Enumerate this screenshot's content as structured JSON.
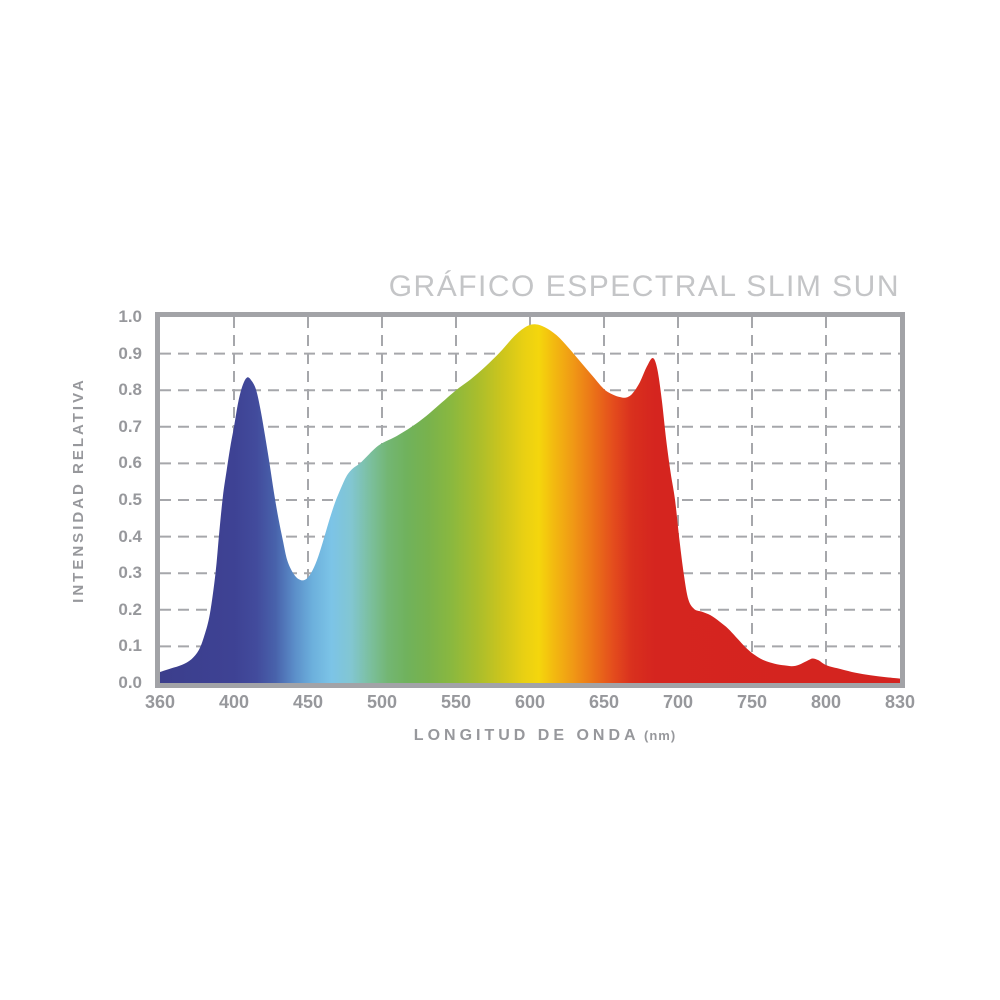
{
  "chart_data": {
    "type": "area",
    "title": "GRÁFICO ESPECTRAL SLIM SUN",
    "xlabel": "LONGITUD DE ONDA",
    "xlabel_unit": "(nm)",
    "ylabel": "INTENSIDAD RELATIVA",
    "x_ticks": [
      360,
      400,
      450,
      500,
      550,
      600,
      650,
      700,
      750,
      800,
      830
    ],
    "x_tick_spacing": "uniform",
    "y_ticks": [
      "0.0",
      "0.1",
      "0.2",
      "0.3",
      "0.4",
      "0.5",
      "0.6",
      "0.7",
      "0.8",
      "0.9",
      "1.0"
    ],
    "ylim": [
      0,
      1
    ],
    "grid": true,
    "grid_style": "dashed",
    "legend": "none",
    "series": [
      {
        "name": "intensidad-espectral",
        "points": [
          [
            360,
            0.03
          ],
          [
            366,
            0.04
          ],
          [
            372,
            0.05
          ],
          [
            377,
            0.065
          ],
          [
            381,
            0.09
          ],
          [
            384,
            0.13
          ],
          [
            387,
            0.19
          ],
          [
            390,
            0.3
          ],
          [
            392,
            0.41
          ],
          [
            394,
            0.51
          ],
          [
            396,
            0.58
          ],
          [
            398,
            0.645
          ],
          [
            400,
            0.7
          ],
          [
            403,
            0.77
          ],
          [
            406,
            0.815
          ],
          [
            409,
            0.835
          ],
          [
            412,
            0.825
          ],
          [
            415,
            0.8
          ],
          [
            418,
            0.745
          ],
          [
            421,
            0.675
          ],
          [
            424,
            0.6
          ],
          [
            427,
            0.52
          ],
          [
            430,
            0.45
          ],
          [
            433,
            0.39
          ],
          [
            436,
            0.335
          ],
          [
            440,
            0.3
          ],
          [
            444,
            0.283
          ],
          [
            448,
            0.282
          ],
          [
            452,
            0.3
          ],
          [
            456,
            0.335
          ],
          [
            460,
            0.385
          ],
          [
            464,
            0.44
          ],
          [
            468,
            0.49
          ],
          [
            472,
            0.53
          ],
          [
            476,
            0.565
          ],
          [
            480,
            0.585
          ],
          [
            485,
            0.6
          ],
          [
            490,
            0.62
          ],
          [
            495,
            0.64
          ],
          [
            500,
            0.655
          ],
          [
            510,
            0.675
          ],
          [
            520,
            0.7
          ],
          [
            530,
            0.73
          ],
          [
            540,
            0.765
          ],
          [
            550,
            0.8
          ],
          [
            560,
            0.83
          ],
          [
            570,
            0.865
          ],
          [
            580,
            0.905
          ],
          [
            590,
            0.95
          ],
          [
            598,
            0.975
          ],
          [
            604,
            0.98
          ],
          [
            610,
            0.972
          ],
          [
            618,
            0.95
          ],
          [
            626,
            0.916
          ],
          [
            634,
            0.878
          ],
          [
            642,
            0.84
          ],
          [
            650,
            0.803
          ],
          [
            656,
            0.788
          ],
          [
            661,
            0.781
          ],
          [
            665,
            0.78
          ],
          [
            669,
            0.79
          ],
          [
            674,
            0.82
          ],
          [
            679,
            0.865
          ],
          [
            683,
            0.888
          ],
          [
            686,
            0.858
          ],
          [
            689,
            0.775
          ],
          [
            692,
            0.665
          ],
          [
            695,
            0.575
          ],
          [
            698,
            0.5
          ],
          [
            701,
            0.39
          ],
          [
            704,
            0.295
          ],
          [
            707,
            0.228
          ],
          [
            711,
            0.202
          ],
          [
            716,
            0.195
          ],
          [
            722,
            0.185
          ],
          [
            728,
            0.168
          ],
          [
            734,
            0.148
          ],
          [
            740,
            0.122
          ],
          [
            746,
            0.096
          ],
          [
            752,
            0.076
          ],
          [
            758,
            0.062
          ],
          [
            765,
            0.053
          ],
          [
            772,
            0.048
          ],
          [
            778,
            0.046
          ],
          [
            783,
            0.052
          ],
          [
            788,
            0.062
          ],
          [
            791,
            0.067
          ],
          [
            795,
            0.062
          ],
          [
            800,
            0.049
          ],
          [
            806,
            0.038
          ],
          [
            812,
            0.028
          ],
          [
            818,
            0.021
          ],
          [
            824,
            0.016
          ],
          [
            830,
            0.012
          ]
        ]
      }
    ],
    "gradient_stops": [
      {
        "nm": 360,
        "color": "#3b3e8c"
      },
      {
        "nm": 400,
        "color": "#3e4294"
      },
      {
        "nm": 415,
        "color": "#424b9c"
      },
      {
        "nm": 428,
        "color": "#4862ab"
      },
      {
        "nm": 441,
        "color": "#5b8ec9"
      },
      {
        "nm": 453,
        "color": "#6cb0dc"
      },
      {
        "nm": 466,
        "color": "#7cc4e7"
      },
      {
        "nm": 479,
        "color": "#82c6d2"
      },
      {
        "nm": 491,
        "color": "#7cc0a2"
      },
      {
        "nm": 504,
        "color": "#73b673"
      },
      {
        "nm": 517,
        "color": "#70b25c"
      },
      {
        "nm": 531,
        "color": "#78b24d"
      },
      {
        "nm": 547,
        "color": "#8ab83f"
      },
      {
        "nm": 564,
        "color": "#a8bd2d"
      },
      {
        "nm": 581,
        "color": "#ccc51d"
      },
      {
        "nm": 596,
        "color": "#e9d013"
      },
      {
        "nm": 606,
        "color": "#f4d60d"
      },
      {
        "nm": 616,
        "color": "#f3ba10"
      },
      {
        "nm": 629,
        "color": "#f09915"
      },
      {
        "nm": 643,
        "color": "#eb7218"
      },
      {
        "nm": 656,
        "color": "#e44d1d"
      },
      {
        "nm": 669,
        "color": "#d9301e"
      },
      {
        "nm": 684,
        "color": "#d5251f"
      },
      {
        "nm": 830,
        "color": "#d4231f"
      }
    ],
    "colors": {
      "title_text": "#c4c5c7",
      "axis_text": "#97989c",
      "frame": "#a2a3a7",
      "grid": "#a6a7ab",
      "background": "#ffffff"
    }
  }
}
